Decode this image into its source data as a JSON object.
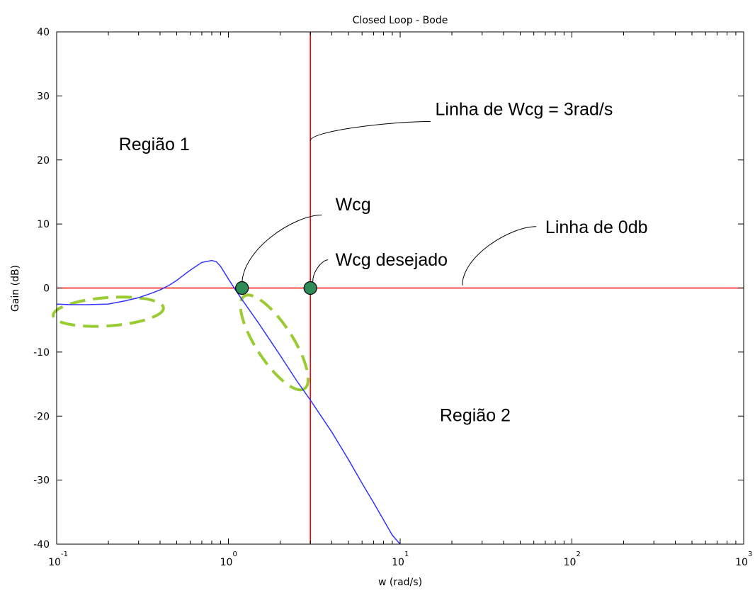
{
  "chart_data": {
    "type": "line",
    "title": "Closed Loop - Bode",
    "xlabel": "w (rad/s)",
    "ylabel": "Gain (dB)",
    "xscale": "log",
    "xlim": [
      0.1,
      1000
    ],
    "ylim": [
      -40,
      40
    ],
    "x_ticks": [
      {
        "base": "10",
        "exp": "-1",
        "value": 0.1
      },
      {
        "base": "10",
        "exp": "0",
        "value": 1
      },
      {
        "base": "10",
        "exp": "1",
        "value": 10
      },
      {
        "base": "10",
        "exp": "2",
        "value": 100
      },
      {
        "base": "10",
        "exp": "3",
        "value": 1000
      }
    ],
    "y_ticks": [
      "40",
      "30",
      "20",
      "10",
      "0",
      "-10",
      "-20",
      "-30",
      "-40"
    ],
    "y_tick_values": [
      40,
      30,
      20,
      10,
      0,
      -10,
      -20,
      -30,
      -40
    ],
    "grid": false,
    "series": [
      {
        "color": "#3333ff",
        "x": [
          0.1,
          0.12,
          0.15,
          0.2,
          0.25,
          0.3,
          0.35,
          0.4,
          0.45,
          0.5,
          0.6,
          0.7,
          0.8,
          0.85,
          0.9,
          1.0,
          1.1,
          1.2,
          1.5,
          2.0,
          2.5,
          3.0,
          4.0,
          5.0,
          6.0,
          7.0,
          8.0,
          9.0,
          10.0
        ],
        "y": [
          -2.5,
          -2.6,
          -2.6,
          -2.5,
          -2.0,
          -1.5,
          -0.9,
          -0.3,
          0.4,
          1.2,
          2.8,
          4.0,
          4.3,
          4.1,
          3.4,
          1.4,
          -0.3,
          -1.8,
          -5.5,
          -10.5,
          -14.5,
          -17.5,
          -22.5,
          -26.8,
          -30.5,
          -33.5,
          -36.2,
          -38.6,
          -40.5
        ]
      }
    ],
    "reference_lines": [
      {
        "orientation": "vertical",
        "x": 3,
        "color": "#ff0000"
      },
      {
        "orientation": "horizontal",
        "y": 0,
        "color": "#ff0000"
      }
    ],
    "markers": [
      {
        "x": 1.2,
        "y": 0,
        "color": "#2e8b57"
      },
      {
        "x": 3,
        "y": 0,
        "color": "#2e8b57"
      }
    ],
    "highlight_ellipses": [
      {
        "cx": 0.2,
        "cy": -3.7,
        "color": "#99cc33"
      },
      {
        "cx": 1.85,
        "cy": -8.5,
        "color": "#99cc33"
      }
    ],
    "annotations": [
      {
        "text": "Linha de Wcg = 3rad/s",
        "x": 16,
        "y": 27,
        "pointer_from": [
          15,
          26
        ],
        "pointer_to": [
          3,
          23
        ]
      },
      {
        "text": "Região 1",
        "x": 0.23,
        "y": 21.5
      },
      {
        "text": "Wcg",
        "x": 4.2,
        "y": 12.1,
        "pointer_from": [
          3.5,
          11.4
        ],
        "pointer_to": [
          1.2,
          0.6
        ]
      },
      {
        "text": "Wcg desejado",
        "x": 4.2,
        "y": 3.5,
        "pointer_from": [
          3.8,
          4.4
        ],
        "pointer_to": [
          3.1,
          1.0
        ]
      },
      {
        "text": "Linha de 0db",
        "x": 70,
        "y": 8.6,
        "pointer_from": [
          62,
          9.6
        ],
        "pointer_to": [
          23,
          0.4
        ]
      },
      {
        "text": "Região 2",
        "x": 17,
        "y": -20.8
      }
    ]
  }
}
